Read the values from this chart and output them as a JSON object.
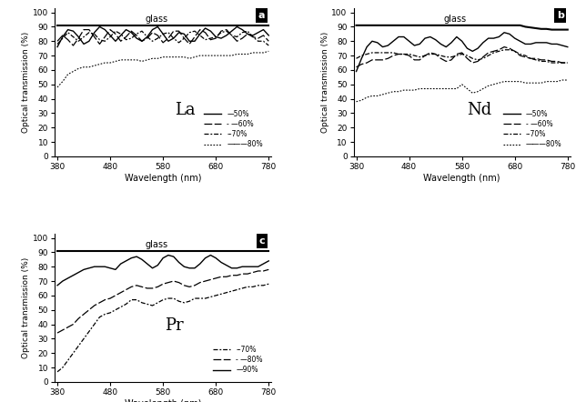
{
  "wavelength": [
    380,
    390,
    400,
    410,
    420,
    430,
    440,
    450,
    460,
    470,
    480,
    490,
    500,
    510,
    520,
    530,
    540,
    550,
    560,
    570,
    580,
    590,
    600,
    610,
    620,
    630,
    640,
    650,
    660,
    670,
    680,
    690,
    700,
    710,
    720,
    730,
    740,
    750,
    760,
    770,
    780
  ],
  "glass_a": [
    91,
    91,
    91,
    91,
    91,
    91,
    91,
    91,
    91,
    91,
    91,
    91,
    91,
    91,
    91,
    91,
    91,
    91,
    91,
    91,
    91,
    91,
    91,
    91,
    91,
    91,
    91,
    91,
    91,
    91,
    91,
    91,
    91,
    91,
    91,
    91,
    91,
    91,
    91,
    91,
    91
  ],
  "glass_b": [
    91,
    91,
    91,
    91,
    91,
    91,
    91,
    91,
    91,
    91,
    91,
    91,
    91,
    91,
    91,
    91,
    91,
    91,
    91,
    91,
    91,
    91,
    91,
    91,
    91,
    91,
    91,
    91,
    91,
    91,
    91,
    91,
    90,
    89.5,
    89,
    88.5,
    88.5,
    88,
    88,
    88,
    88
  ],
  "glass_c": [
    91,
    91,
    91,
    91,
    91,
    91,
    91,
    91,
    91,
    91,
    91,
    91,
    91,
    91,
    91,
    91,
    91,
    91,
    91,
    91,
    91,
    91,
    91,
    91,
    91,
    91,
    91,
    91,
    91,
    91,
    91,
    91,
    91,
    91,
    91,
    91,
    91,
    91,
    91,
    91,
    91
  ],
  "La_50": [
    76,
    83,
    88,
    87,
    83,
    78,
    80,
    86,
    90,
    88,
    84,
    80,
    84,
    88,
    86,
    82,
    80,
    83,
    88,
    90,
    85,
    80,
    82,
    86,
    85,
    80,
    80,
    85,
    89,
    87,
    83,
    82,
    84,
    87,
    90,
    88,
    85,
    84,
    86,
    88,
    84
  ],
  "La_60": [
    80,
    84,
    81,
    77,
    82,
    88,
    88,
    83,
    78,
    83,
    88,
    85,
    80,
    83,
    87,
    84,
    80,
    82,
    86,
    84,
    79,
    82,
    87,
    87,
    82,
    78,
    83,
    88,
    86,
    81,
    82,
    87,
    88,
    84,
    80,
    82,
    85,
    83,
    82,
    84,
    80
  ],
  "La_70": [
    78,
    82,
    86,
    83,
    80,
    83,
    86,
    85,
    81,
    80,
    83,
    87,
    85,
    81,
    82,
    85,
    87,
    83,
    80,
    82,
    85,
    86,
    82,
    79,
    82,
    86,
    87,
    84,
    81,
    82,
    83,
    86,
    87,
    84,
    83,
    86,
    87,
    83,
    80,
    80,
    77
  ],
  "La_80": [
    48,
    52,
    57,
    59,
    61,
    62,
    62,
    63,
    64,
    65,
    65,
    66,
    67,
    67,
    67,
    67,
    66,
    67,
    68,
    68,
    69,
    69,
    69,
    69,
    69,
    68,
    69,
    70,
    70,
    70,
    70,
    70,
    70,
    70,
    71,
    71,
    71,
    72,
    72,
    72,
    73
  ],
  "Nd_50": [
    59,
    68,
    76,
    80,
    79,
    76,
    77,
    80,
    83,
    83,
    80,
    77,
    78,
    82,
    83,
    81,
    78,
    76,
    79,
    83,
    80,
    75,
    73,
    75,
    79,
    82,
    82,
    83,
    86,
    85,
    82,
    80,
    78,
    78,
    79,
    79,
    79,
    78,
    78,
    77,
    76
  ],
  "Nd_60": [
    62,
    64,
    65,
    67,
    67,
    67,
    68,
    70,
    71,
    71,
    70,
    67,
    67,
    70,
    72,
    71,
    68,
    66,
    67,
    71,
    72,
    68,
    65,
    66,
    69,
    72,
    73,
    74,
    76,
    75,
    73,
    70,
    69,
    68,
    68,
    67,
    67,
    66,
    66,
    65,
    65
  ],
  "Nd_70": [
    68,
    70,
    71,
    72,
    72,
    72,
    72,
    72,
    71,
    71,
    71,
    70,
    69,
    70,
    71,
    71,
    70,
    69,
    69,
    70,
    71,
    70,
    68,
    67,
    68,
    70,
    72,
    73,
    74,
    74,
    73,
    71,
    70,
    68,
    67,
    66,
    66,
    65,
    65,
    65,
    65
  ],
  "Nd_80": [
    38,
    39,
    41,
    42,
    42,
    43,
    44,
    45,
    45,
    46,
    46,
    46,
    47,
    47,
    47,
    47,
    47,
    47,
    47,
    47,
    50,
    47,
    44,
    45,
    47,
    49,
    50,
    51,
    52,
    52,
    52,
    52,
    51,
    51,
    51,
    51,
    52,
    52,
    52,
    53,
    53
  ],
  "Pr_70": [
    7,
    10,
    15,
    20,
    25,
    30,
    35,
    40,
    45,
    47,
    48,
    50,
    52,
    54,
    57,
    57,
    55,
    54,
    53,
    55,
    57,
    58,
    58,
    56,
    55,
    56,
    58,
    58,
    58,
    59,
    60,
    61,
    62,
    63,
    64,
    65,
    66,
    66,
    67,
    67,
    68
  ],
  "Pr_80": [
    34,
    36,
    38,
    40,
    44,
    47,
    50,
    53,
    55,
    57,
    58,
    60,
    62,
    64,
    66,
    67,
    66,
    65,
    65,
    66,
    68,
    69,
    70,
    69,
    67,
    66,
    67,
    69,
    70,
    71,
    72,
    73,
    73,
    74,
    74,
    75,
    75,
    76,
    77,
    77,
    78
  ],
  "Pr_90": [
    67,
    70,
    72,
    74,
    76,
    78,
    79,
    80,
    80,
    80,
    79,
    78,
    82,
    84,
    86,
    87,
    85,
    82,
    79,
    81,
    86,
    88,
    87,
    83,
    80,
    79,
    79,
    82,
    86,
    88,
    86,
    83,
    81,
    79,
    79,
    80,
    80,
    80,
    80,
    82,
    84
  ],
  "xlabel": "Wavelength (nm)",
  "ylabel": "Optical transmission (%)",
  "xticks": [
    380,
    480,
    580,
    680,
    780
  ],
  "yticks": [
    0,
    10,
    20,
    30,
    40,
    50,
    60,
    70,
    80,
    90,
    100
  ],
  "ylim": [
    0,
    103
  ],
  "xlim": [
    375,
    785
  ]
}
